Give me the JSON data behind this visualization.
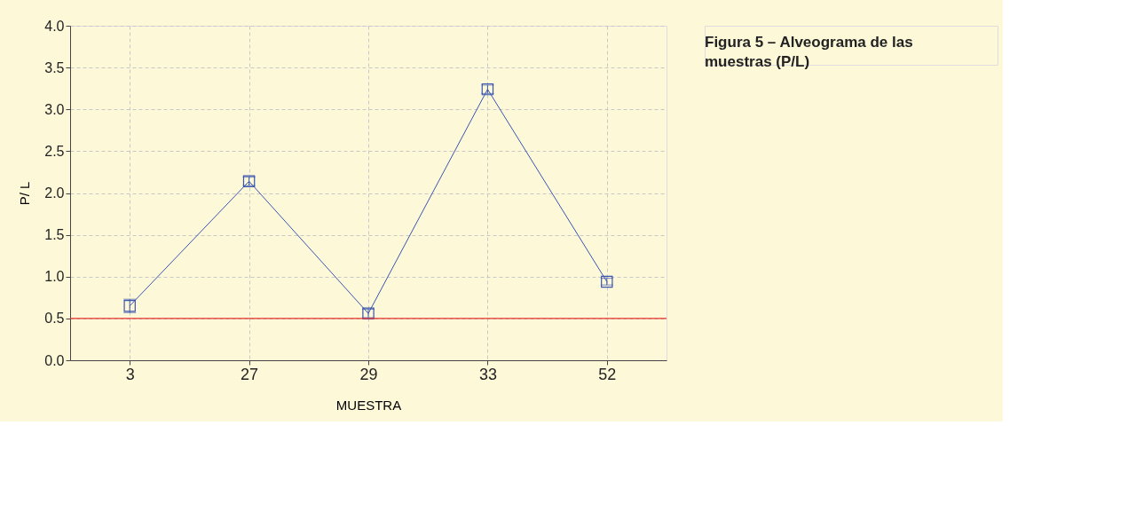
{
  "chart_data": {
    "type": "line",
    "title": "Figura 5 – Alveograma de las muestras (P/L)",
    "xlabel": "MUESTRA",
    "ylabel": "P/ L",
    "categories": [
      "3",
      "27",
      "29",
      "33",
      "52"
    ],
    "series": [
      {
        "color": "#3a55b0",
        "values": [
          0.65,
          2.14,
          0.56,
          3.24,
          0.94
        ],
        "errors": [
          0.08,
          0.05,
          0.05,
          0.05,
          0.04
        ]
      }
    ],
    "ylim": [
      0.0,
      4.0
    ],
    "yticks": [
      {
        "value": 0,
        "label": "0.0"
      },
      0.5,
      {
        "value": 1,
        "label": "1.0"
      },
      1.5,
      {
        "value": 2,
        "label": "2.0"
      },
      2.5,
      {
        "value": 3,
        "label": "3.0"
      },
      3.5,
      {
        "value": 4,
        "label": "4.0"
      }
    ],
    "ref_lines": [
      {
        "axis": "y",
        "value": 0.5,
        "color": "#e8312a"
      }
    ],
    "grid": true,
    "marker": "square",
    "line_style": "solid"
  }
}
